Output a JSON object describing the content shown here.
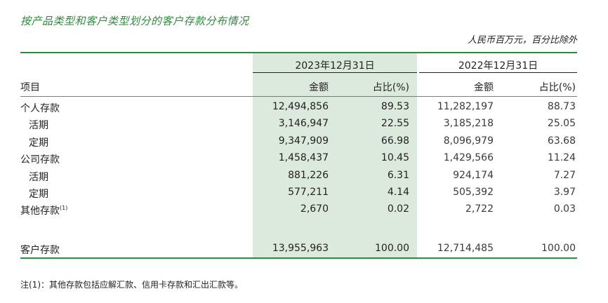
{
  "title": "按产品类型和客户类型划分的客户存款分布情况",
  "unit_note": "人民币百万元，百分比除外",
  "periods": {
    "p2023": "2023年12月31日",
    "p2022": "2022年12月31日"
  },
  "headers": {
    "item": "项目",
    "amount_2023": "金额",
    "ratio_2023": "占比(%)",
    "amount_2022": "金额",
    "ratio_2022": "占比(%)"
  },
  "rows": [
    {
      "label": "个人存款",
      "a2023": "12,494,856",
      "r2023": "89.53",
      "a2022": "11,282,197",
      "r2022": "88.73"
    },
    {
      "label": "活期",
      "a2023": "3,146,947",
      "r2023": "22.55",
      "a2022": "3,185,218",
      "r2022": "25.05"
    },
    {
      "label": "定期",
      "a2023": "9,347,909",
      "r2023": "66.98",
      "a2022": "8,096,979",
      "r2022": "63.68"
    },
    {
      "label": "公司存款",
      "a2023": "1,458,437",
      "r2023": "10.45",
      "a2022": "1,429,566",
      "r2022": "11.24"
    },
    {
      "label": "活期",
      "a2023": "881,226",
      "r2023": "6.31",
      "a2022": "924,174",
      "r2022": "7.27"
    },
    {
      "label": "定期",
      "a2023": "577,211",
      "r2023": "4.14",
      "a2022": "505,392",
      "r2022": "3.97"
    },
    {
      "label": "其他存款",
      "sup": "(1)",
      "a2023": "2,670",
      "r2023": "0.02",
      "a2022": "2,722",
      "r2022": "0.03"
    }
  ],
  "total": {
    "label": "客户存款",
    "a2023": "13,955,963",
    "r2023": "100.00",
    "a2022": "12,714,485",
    "r2022": "100.00"
  },
  "footnote": "注(1)：其他存款包括应解汇款、信用卡存款和汇出汇款等。"
}
